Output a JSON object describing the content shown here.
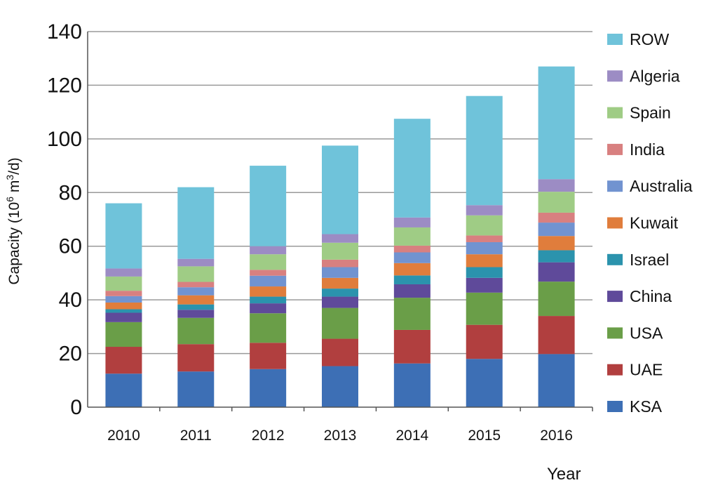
{
  "chart_data": {
    "type": "bar",
    "stacked": true,
    "categories": [
      "2010",
      "2011",
      "2012",
      "2013",
      "2014",
      "2015",
      "2016"
    ],
    "ylim": [
      0,
      140
    ],
    "yticks": [
      "0",
      "20",
      "40",
      "60",
      "80",
      "100",
      "120",
      "140"
    ],
    "xlabel": "Year",
    "ylabel_prefix": "Capacity (10",
    "ylabel_sup1": "6",
    "ylabel_mid": " m",
    "ylabel_sup2": "3",
    "ylabel_suffix": "/d)",
    "grid": "horizontal",
    "legend_position": "right",
    "series": [
      {
        "name": "KSA",
        "color": "#3d6fb5",
        "values": [
          12.5,
          13.3,
          14.2,
          15.3,
          16.3,
          18.0,
          19.8
        ]
      },
      {
        "name": "UAE",
        "color": "#b13f3f",
        "values": [
          10.0,
          10.2,
          9.8,
          10.2,
          12.5,
          12.7,
          14.2
        ]
      },
      {
        "name": "USA",
        "color": "#6a9e48",
        "values": [
          9.2,
          9.8,
          11.0,
          11.5,
          12.0,
          12.0,
          12.8
        ]
      },
      {
        "name": "China",
        "color": "#5f4a9a",
        "values": [
          3.5,
          3.0,
          3.7,
          4.2,
          5.0,
          5.5,
          7.2
        ]
      },
      {
        "name": "Israel",
        "color": "#2b93ad",
        "values": [
          1.3,
          2.0,
          2.5,
          3.0,
          3.3,
          4.0,
          4.5
        ]
      },
      {
        "name": "Kuwait",
        "color": "#e07d3c",
        "values": [
          2.5,
          3.4,
          3.8,
          4.0,
          4.6,
          4.8,
          5.3
        ]
      },
      {
        "name": "Australia",
        "color": "#7193d0",
        "values": [
          2.4,
          3.0,
          4.0,
          4.0,
          4.0,
          4.5,
          5.0
        ]
      },
      {
        "name": "India",
        "color": "#d88080",
        "values": [
          2.0,
          2.0,
          2.2,
          2.8,
          2.5,
          2.5,
          3.7
        ]
      },
      {
        "name": "Spain",
        "color": "#9fcc85",
        "values": [
          5.3,
          5.8,
          5.8,
          6.3,
          6.8,
          7.5,
          7.8
        ]
      },
      {
        "name": "Algeria",
        "color": "#9c8cc4",
        "values": [
          3.0,
          2.8,
          3.0,
          3.2,
          3.7,
          3.8,
          4.7
        ]
      },
      {
        "name": "ROW",
        "color": "#6fc3da",
        "values": [
          24.3,
          26.7,
          30.0,
          33.0,
          36.8,
          40.7,
          42.0
        ]
      }
    ]
  }
}
